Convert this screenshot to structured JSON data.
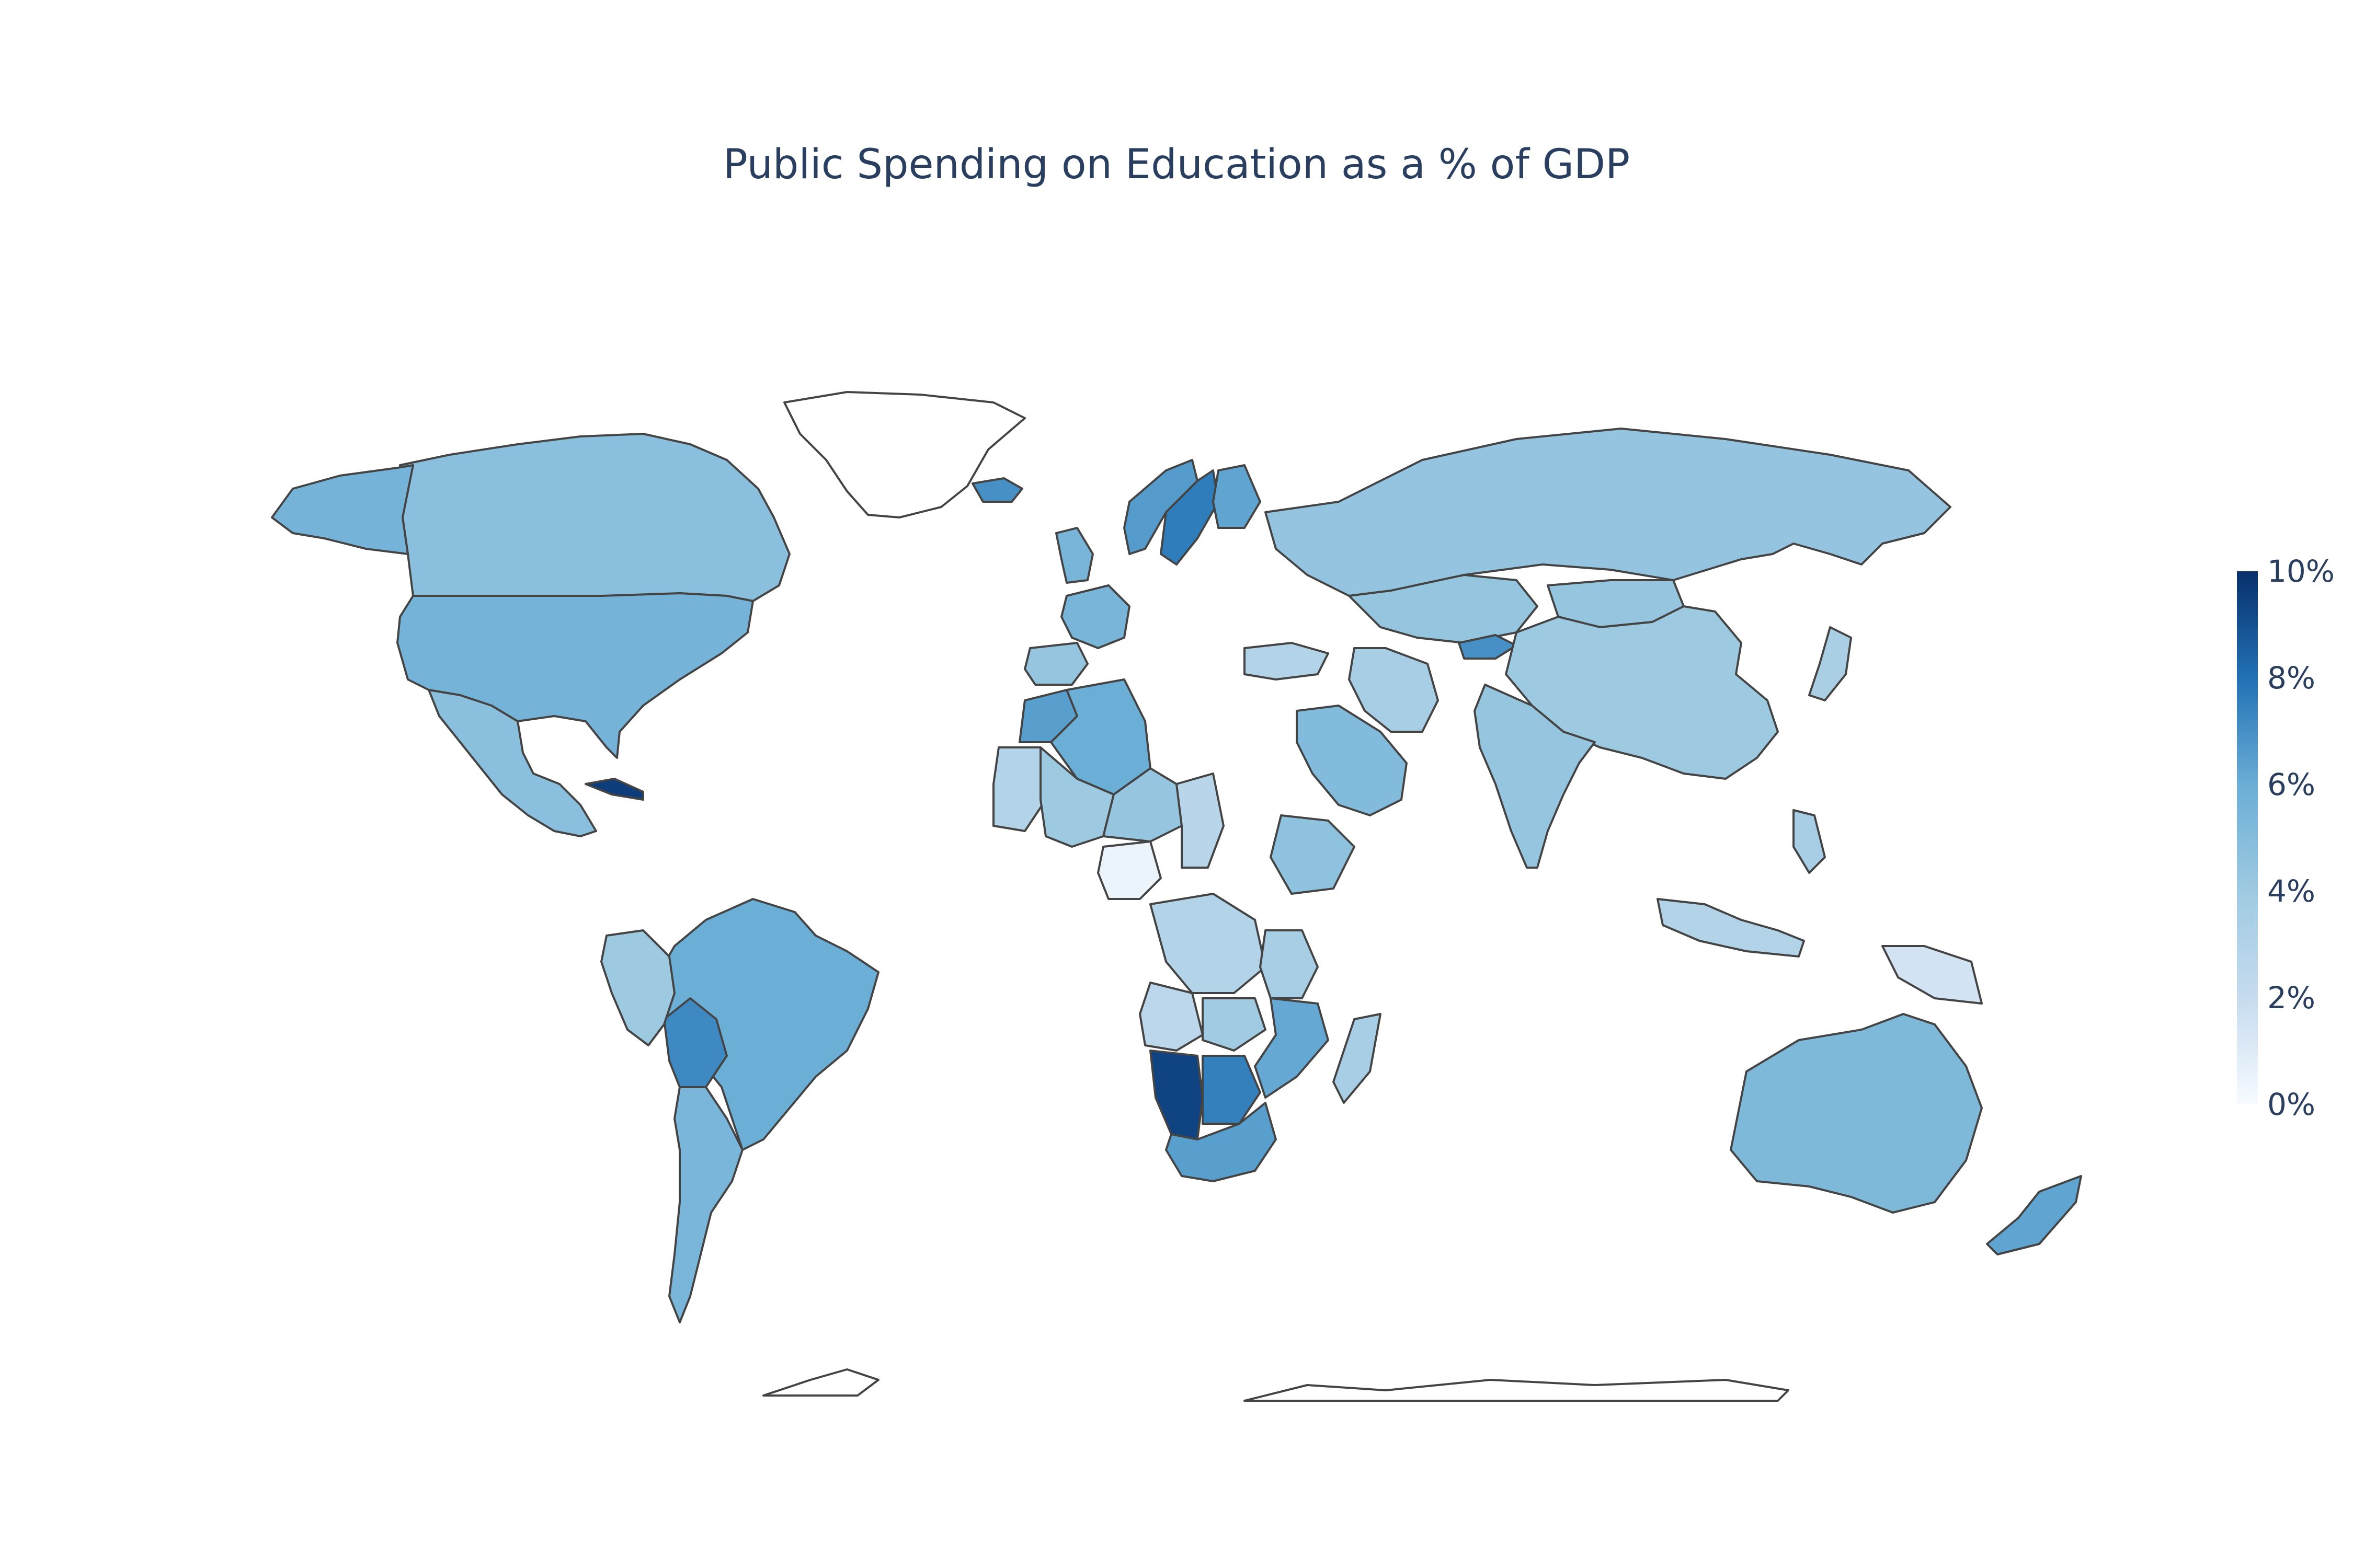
{
  "title": "Public Spending on Education as a % of GDP",
  "colorbar": {
    "ticks": [
      "10%",
      "8%",
      "6%",
      "4%",
      "2%",
      "0%"
    ],
    "range": [
      0,
      10
    ],
    "colorscale": [
      "#f7fbff",
      "#c6dbef",
      "#9ecae1",
      "#6baed6",
      "#2171b5",
      "#08306b"
    ]
  },
  "colors": {
    "border": "#444444",
    "no_data": "#ffffff",
    "title": "#2a3f5f"
  },
  "chart_data": {
    "type": "choropleth",
    "projection": "robinson",
    "title": "Public Spending on Education as a % of GDP",
    "unit": "%",
    "range": [
      0,
      10
    ],
    "regions": [
      {
        "name": "Canada",
        "value": 4.8
      },
      {
        "name": "United States",
        "value": 5.6
      },
      {
        "name": "Mexico",
        "value": 4.8
      },
      {
        "name": "Alaska",
        "value": 5.6
      },
      {
        "name": "Brazil",
        "value": 6.0
      },
      {
        "name": "Bolivia",
        "value": 7.2
      },
      {
        "name": "Argentina",
        "value": 5.4
      },
      {
        "name": "Peru",
        "value": 4.0
      },
      {
        "name": "Cuba",
        "value": 9.6
      },
      {
        "name": "Greenland",
        "value": null
      },
      {
        "name": "Iceland",
        "value": 7.0
      },
      {
        "name": "Norway",
        "value": 6.6
      },
      {
        "name": "Sweden",
        "value": 7.6
      },
      {
        "name": "Finland",
        "value": 6.3
      },
      {
        "name": "United Kingdom",
        "value": 5.5
      },
      {
        "name": "France",
        "value": 5.5
      },
      {
        "name": "Spain",
        "value": 4.3
      },
      {
        "name": "Russia",
        "value": 4.4
      },
      {
        "name": "Kazakhstan",
        "value": 4.3
      },
      {
        "name": "Kyrgyzstan",
        "value": 7.0
      },
      {
        "name": "Mongolia",
        "value": 4.3
      },
      {
        "name": "China",
        "value": 4.0
      },
      {
        "name": "India",
        "value": 4.3
      },
      {
        "name": "Iran",
        "value": 3.5
      },
      {
        "name": "Saudi Arabia",
        "value": 5.1
      },
      {
        "name": "Turkey",
        "value": 3.0
      },
      {
        "name": "Algeria",
        "value": 6.0
      },
      {
        "name": "Morocco",
        "value": 6.5
      },
      {
        "name": "Mauritania",
        "value": 3.0
      },
      {
        "name": "Mali",
        "value": 4.0
      },
      {
        "name": "Niger",
        "value": 4.3
      },
      {
        "name": "Chad",
        "value": 2.7
      },
      {
        "name": "Nigeria",
        "value": 0.5
      },
      {
        "name": "Ethiopia",
        "value": 4.6
      },
      {
        "name": "DR Congo",
        "value": 3.0
      },
      {
        "name": "Tanzania",
        "value": 3.5
      },
      {
        "name": "Angola",
        "value": 2.5
      },
      {
        "name": "Zambia",
        "value": 3.9
      },
      {
        "name": "Mozambique",
        "value": 6.2
      },
      {
        "name": "Madagascar",
        "value": 3.5
      },
      {
        "name": "Namibia",
        "value": 9.4
      },
      {
        "name": "Botswana",
        "value": 7.5
      },
      {
        "name": "South Africa",
        "value": 6.5
      },
      {
        "name": "Indonesia",
        "value": 3.0
      },
      {
        "name": "Papua New Guinea",
        "value": 1.5
      },
      {
        "name": "Philippines",
        "value": 3.5
      },
      {
        "name": "Japan",
        "value": 3.4
      },
      {
        "name": "Australia",
        "value": 5.2
      },
      {
        "name": "New Zealand",
        "value": 6.3
      },
      {
        "name": "Antarctica",
        "value": null
      }
    ]
  }
}
